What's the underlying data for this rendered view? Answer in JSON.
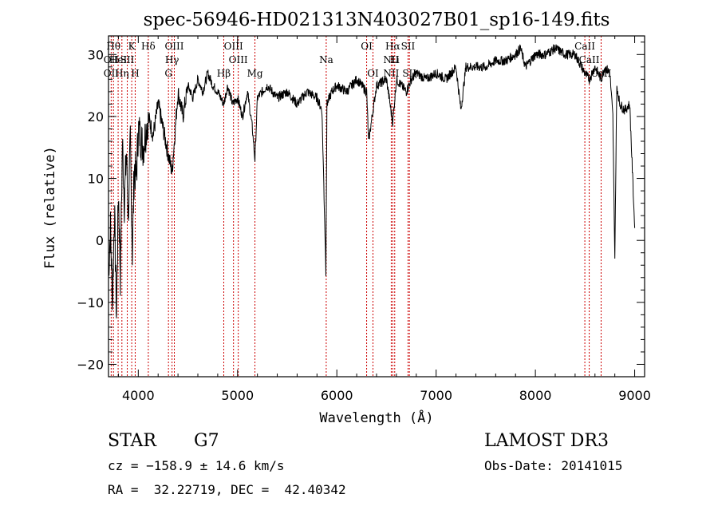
{
  "chart_data": {
    "type": "line",
    "title": "spec-56946-HD021313N403027B01_sp16-149.fits",
    "xlabel": "Wavelength (Å)",
    "ylabel": "Flux (relative)",
    "xlim": [
      3700,
      9100
    ],
    "ylim": [
      -22,
      33
    ],
    "xticks": [
      4000,
      5000,
      6000,
      7000,
      8000,
      9000
    ],
    "yticks": [
      -20,
      -10,
      0,
      10,
      20,
      30
    ],
    "series": [
      {
        "name": "flux",
        "x": [
          3700,
          3720,
          3740,
          3760,
          3780,
          3800,
          3820,
          3840,
          3860,
          3880,
          3900,
          3920,
          3940,
          3960,
          3980,
          4000,
          4050,
          4100,
          4150,
          4200,
          4250,
          4300,
          4340,
          4400,
          4450,
          4500,
          4550,
          4600,
          4650,
          4700,
          4750,
          4800,
          4861,
          4900,
          4950,
          5000,
          5050,
          5100,
          5150,
          5175,
          5200,
          5300,
          5400,
          5500,
          5600,
          5700,
          5800,
          5850,
          5890,
          5900,
          5950,
          6000,
          6100,
          6200,
          6300,
          6320,
          6400,
          6500,
          6563,
          6600,
          6650,
          6700,
          6750,
          6800,
          6900,
          7000,
          7100,
          7200,
          7250,
          7300,
          7400,
          7500,
          7600,
          7700,
          7800,
          7850,
          7900,
          8000,
          8100,
          8200,
          8300,
          8400,
          8498,
          8542,
          8600,
          8662,
          8700,
          8750,
          8780,
          8800,
          8820,
          8850,
          8900,
          8950,
          9000
        ],
        "y": [
          -5,
          2,
          -10,
          5,
          -12,
          8,
          -6,
          16,
          6,
          14,
          4,
          16,
          -2,
          12,
          10,
          18,
          15,
          20,
          17,
          22,
          18,
          14,
          11,
          24,
          20,
          25,
          23,
          26,
          24,
          27,
          25,
          24,
          22,
          25,
          22,
          23,
          20,
          24,
          18,
          13,
          23,
          25,
          23,
          24,
          22,
          24,
          23,
          21,
          -5,
          22,
          24,
          25,
          24,
          26,
          24,
          16,
          25,
          26,
          19,
          26,
          25,
          24,
          26,
          27,
          26,
          27,
          26,
          28,
          21,
          28,
          28,
          28,
          29,
          29,
          30,
          31,
          28,
          30,
          30,
          31,
          30,
          30,
          27,
          26,
          28,
          26,
          28,
          27,
          20,
          -3,
          25,
          22,
          21,
          22,
          2
        ]
      }
    ],
    "line_markers": [
      {
        "wavelength": 3750,
        "label": "Hθ",
        "row": 0
      },
      {
        "wavelength": 3727,
        "label": "OII",
        "row": 1
      },
      {
        "wavelength": 3727,
        "label": "OII",
        "row": 2
      },
      {
        "wavelength": 3797,
        "label": "HeI",
        "row": 1
      },
      {
        "wavelength": 3835,
        "label": "Hη",
        "row": 2
      },
      {
        "wavelength": 3889,
        "label": "SII",
        "row": 1
      },
      {
        "wavelength": 3934,
        "label": "K",
        "row": 0
      },
      {
        "wavelength": 3969,
        "label": "H",
        "row": 2
      },
      {
        "wavelength": 4101,
        "label": "Hδ",
        "row": 0
      },
      {
        "wavelength": 4340,
        "label": "Hγ",
        "row": 1
      },
      {
        "wavelength": 4304,
        "label": "G",
        "row": 2
      },
      {
        "wavelength": 4363,
        "label": "OIII",
        "row": 0
      },
      {
        "wavelength": 4861,
        "label": "Hβ",
        "row": 2
      },
      {
        "wavelength": 4959,
        "label": "OIII",
        "row": 0
      },
      {
        "wavelength": 5007,
        "label": "OIII",
        "row": 1
      },
      {
        "wavelength": 5175,
        "label": "Mg",
        "row": 2
      },
      {
        "wavelength": 5893,
        "label": "Na",
        "row": 1
      },
      {
        "wavelength": 6300,
        "label": "OI",
        "row": 0
      },
      {
        "wavelength": 6364,
        "label": "OI",
        "row": 2
      },
      {
        "wavelength": 6548,
        "label": "NII",
        "row": 1
      },
      {
        "wavelength": 6548,
        "label": "NII",
        "row": 2
      },
      {
        "wavelength": 6563,
        "label": "Hα",
        "row": 0
      },
      {
        "wavelength": 6583,
        "label": "Li",
        "row": 1
      },
      {
        "wavelength": 6717,
        "label": "SII",
        "row": 0
      },
      {
        "wavelength": 6731,
        "label": "SII",
        "row": 2
      },
      {
        "wavelength": 8498,
        "label": "CaII",
        "row": 0
      },
      {
        "wavelength": 8542,
        "label": "CaII",
        "row": 1
      },
      {
        "wavelength": 8662,
        "label": "CaII",
        "row": 2
      }
    ],
    "colors": {
      "spectrum": "#000000",
      "marker": "#cc0000",
      "axes": "#000000"
    }
  },
  "info": {
    "object_class": "STAR",
    "subclass": "G7",
    "survey": "LAMOST DR3",
    "cz": "cz = −158.9 ± 14.6 km/s",
    "obs_date": "Obs-Date: 20141015",
    "coords": "RA =  32.22719, DEC =  42.40342"
  }
}
